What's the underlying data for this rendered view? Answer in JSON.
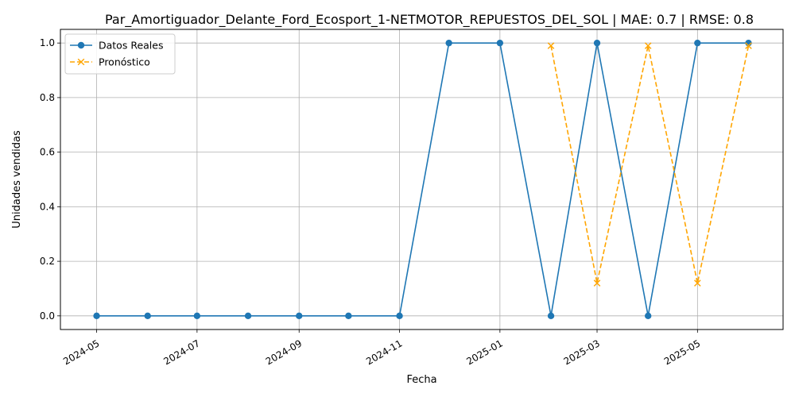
{
  "chart_data": {
    "type": "line",
    "title": "Par_Amortiguador_Delante_Ford_Ecosport_1-NETMOTOR_REPUESTOS_DEL_SOL | MAE: 0.7 | RMSE: 0.8",
    "xlabel": "Fecha",
    "ylabel": "Unidades vendidas",
    "x_ticks": [
      "2024-05",
      "2024-07",
      "2024-09",
      "2024-11",
      "2025-01",
      "2025-03",
      "2025-05"
    ],
    "y_ticks": [
      "0.0",
      "0.2",
      "0.4",
      "0.6",
      "0.8",
      "1.0"
    ],
    "ylim": [
      -0.05,
      1.05
    ],
    "xlim": [
      "2024-04-09",
      "2025-06-22"
    ],
    "grid": true,
    "legend_position": "top-left",
    "series": [
      {
        "name": "Datos Reales",
        "color": "#1f77b4",
        "style": "solid",
        "marker": "circle",
        "x": [
          "2024-05-01",
          "2024-06-01",
          "2024-07-01",
          "2024-08-01",
          "2024-09-01",
          "2024-10-01",
          "2024-11-01",
          "2024-12-01",
          "2025-01-01",
          "2025-02-01",
          "2025-03-01",
          "2025-04-01",
          "2025-05-01",
          "2025-06-01"
        ],
        "values": [
          0,
          0,
          0,
          0,
          0,
          0,
          0,
          1,
          1,
          0,
          1,
          0,
          1,
          1
        ]
      },
      {
        "name": "Pronóstico",
        "color": "#ffa500",
        "style": "dashed",
        "marker": "x",
        "x": [
          "2025-02-01",
          "2025-03-01",
          "2025-04-01",
          "2025-05-01",
          "2025-06-01"
        ],
        "values": [
          0.99,
          0.12,
          0.99,
          0.12,
          0.99
        ]
      }
    ]
  }
}
